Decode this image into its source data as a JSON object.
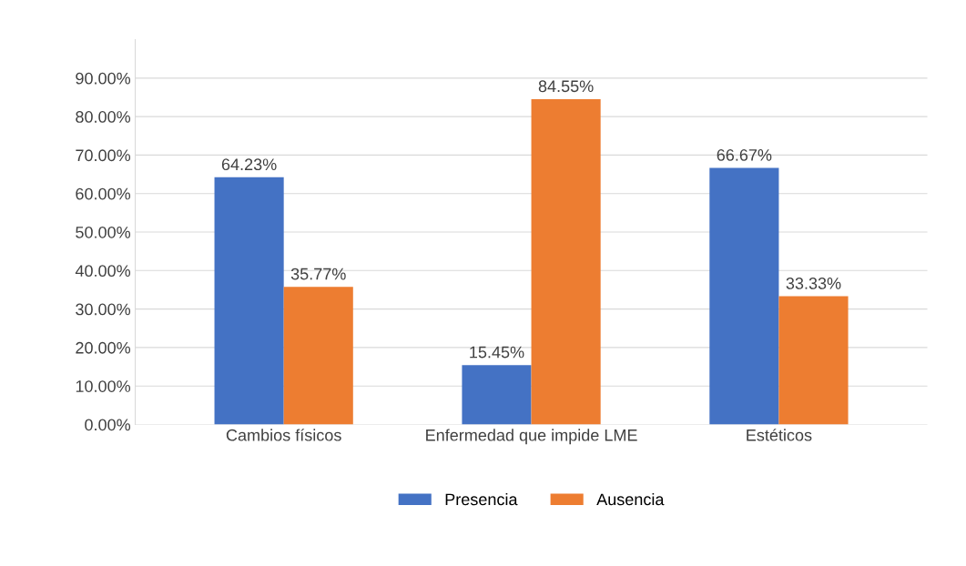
{
  "chart_data": {
    "type": "bar",
    "categories": [
      "Cambios físicos",
      "Enfermedad que impide LME",
      "Estéticos"
    ],
    "series": [
      {
        "name": "Presencia",
        "color": "#4472c4",
        "values": [
          64.23,
          15.45,
          66.67
        ],
        "value_labels": [
          "64.23%",
          "15.45%",
          "66.67%"
        ]
      },
      {
        "name": "Ausencia",
        "color": "#ed7d31",
        "values": [
          35.77,
          84.55,
          33.33
        ],
        "value_labels": [
          "35.77%",
          "84.55%",
          "33.33%"
        ]
      }
    ],
    "ylim": [
      0,
      100
    ],
    "yticks": [
      {
        "value": 0,
        "label": "0.00%"
      },
      {
        "value": 10,
        "label": "10.00%"
      },
      {
        "value": 20,
        "label": "20.00%"
      },
      {
        "value": 30,
        "label": "30.00%"
      },
      {
        "value": 40,
        "label": "40.00%"
      },
      {
        "value": 50,
        "label": "50.00%"
      },
      {
        "value": 60,
        "label": "60.00%"
      },
      {
        "value": 70,
        "label": "70.00%"
      },
      {
        "value": 80,
        "label": "80.00%"
      },
      {
        "value": 90,
        "label": "90.00%"
      }
    ],
    "grid": "y",
    "legend": "bottom"
  }
}
